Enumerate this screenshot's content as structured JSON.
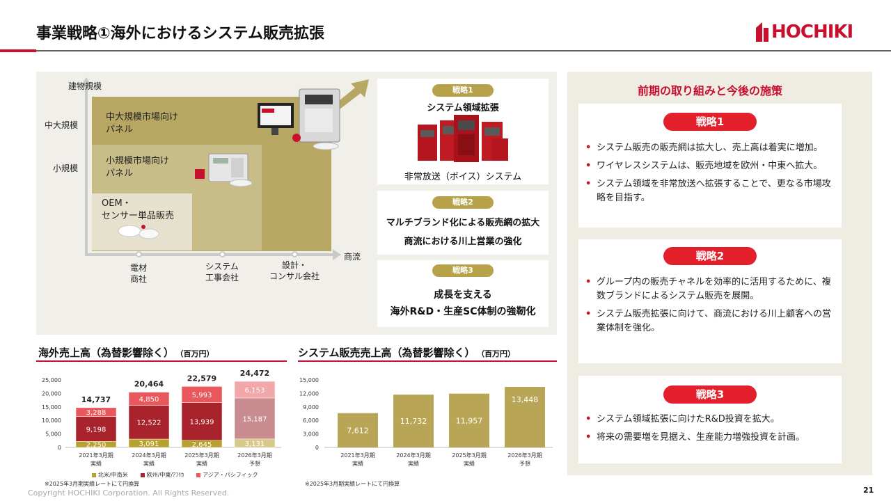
{
  "header": {
    "title": "事業戦略①海外におけるシステム販売拡張",
    "logo_text": "HOCHIKI"
  },
  "diagram": {
    "y_axis_label": "建物規模",
    "x_axis_label": "商流",
    "y_ticks": [
      "中大規模",
      "小規模"
    ],
    "tiers": [
      {
        "label_line1": "中大規模市場向け",
        "label_line2": "パネル"
      },
      {
        "label_line1": "小規模市場向け",
        "label_line2": "パネル"
      },
      {
        "label_line1": "OEM・",
        "label_line2": "センサー単品販売"
      }
    ],
    "channels": [
      {
        "line1": "電材",
        "line2": "商社"
      },
      {
        "line1": "システム",
        "line2": "工事会社"
      },
      {
        "line1": "設計・",
        "line2": "コンサル会社"
      }
    ]
  },
  "strategies_left": [
    {
      "tag": "戦略1",
      "title": "システム領域拡張",
      "caption": "非常放送（ボイス）システム"
    },
    {
      "tag": "戦略2",
      "line1": "マルチブランド化による販売網の拡大",
      "line2": "商流における川上営業の強化"
    },
    {
      "tag": "戦略3",
      "line1": "成長を支える",
      "line2": "海外R&D・生産SC体制の強靭化"
    }
  ],
  "right": {
    "heading": "前期の取り組みと今後の施策",
    "boxes": [
      {
        "tag": "戦略1",
        "bullets": [
          "システム販売の販売網は拡大し、売上高は着実に増加。",
          "ワイヤレスシステムは、販売地域を欧州・中東へ拡大。",
          "システム領域を非常放送へ拡張することで、更なる市場攻略を目指す。"
        ]
      },
      {
        "tag": "戦略2",
        "bullets": [
          "グループ内の販売チャネルを効率的に活用するために、複数ブランドによるシステム販売を展開。",
          "システム販売拡張に向けて、商流における川上顧客への営業体制を強化。"
        ]
      },
      {
        "tag": "戦略3",
        "bullets": [
          "システム領域拡張に向けたR&D投資を拡大。",
          "将来の需要増を見据え、生産能力増強投資を計画。"
        ]
      }
    ]
  },
  "chart_titles": {
    "overseas_title": "海外売上高（為替影響除く）",
    "overseas_unit": "（百万円）",
    "system_title": "システム販売売上高（為替影響除く）",
    "system_unit": "（百万円）",
    "note_overseas": "※2025年3月期実績レートにて円換算",
    "note_system": "※2025年3月期実績レートにて円換算"
  },
  "chart_data": [
    {
      "type": "bar",
      "stacked": true,
      "title": "海外売上高（為替影響除く）",
      "ylabel": "（百万円）",
      "ylim": [
        0,
        25000
      ],
      "yticks": [
        "0",
        "5,000",
        "10,000",
        "15,000",
        "20,000",
        "25,000"
      ],
      "categories": [
        "2021年3月期",
        "2024年3月期",
        "2025年3月期",
        "2026年3月期"
      ],
      "category_sub": [
        "実績",
        "実績",
        "実績",
        "予想"
      ],
      "totals": [
        14737,
        20464,
        22579,
        24472
      ],
      "total_labels": [
        "14,737",
        "20,464",
        "22,579",
        "24,472"
      ],
      "series": [
        {
          "name": "北米/中南米",
          "values": [
            2250,
            3091,
            2645,
            3131
          ],
          "labels": [
            "2,250",
            "3,091",
            "2,645",
            "3,131"
          ]
        },
        {
          "name": "欧州/中東/ｱﾌﾘｶ",
          "values": [
            9198,
            12522,
            13939,
            15187
          ],
          "labels": [
            "9,198",
            "12,522",
            "13,939",
            "15,187"
          ]
        },
        {
          "name": "アジア・パシフィック",
          "values": [
            3288,
            4850,
            5993,
            6153
          ],
          "labels": [
            "3,288",
            "4,850",
            "5,993",
            "6,153"
          ]
        }
      ],
      "colors": {
        "actual": [
          "#b8a12e",
          "#a8232c",
          "#e8585c"
        ],
        "forecast": [
          "#d7c98a",
          "#c98c8e",
          "#f2a7a8"
        ]
      },
      "legend": "bottom"
    },
    {
      "type": "bar",
      "title": "システム販売売上高（為替影響除く）",
      "ylabel": "（百万円）",
      "ylim": [
        0,
        15000
      ],
      "yticks": [
        "0",
        "3,000",
        "6,000",
        "9,000",
        "12,000",
        "15,000"
      ],
      "categories": [
        "2021年3月期",
        "2024年3月期",
        "2025年3月期",
        "2026年3月期"
      ],
      "category_sub": [
        "実績",
        "実績",
        "実績",
        "予想"
      ],
      "values": [
        7612,
        11732,
        11957,
        13448
      ],
      "labels": [
        "7,612",
        "11,732",
        "11,957",
        "13,448"
      ],
      "colors": {
        "bar": "#b8a556"
      }
    }
  ],
  "footer": {
    "copyright": "Copyright HOCHIKI Corporation. All Rights Reserved.",
    "page": "21"
  }
}
